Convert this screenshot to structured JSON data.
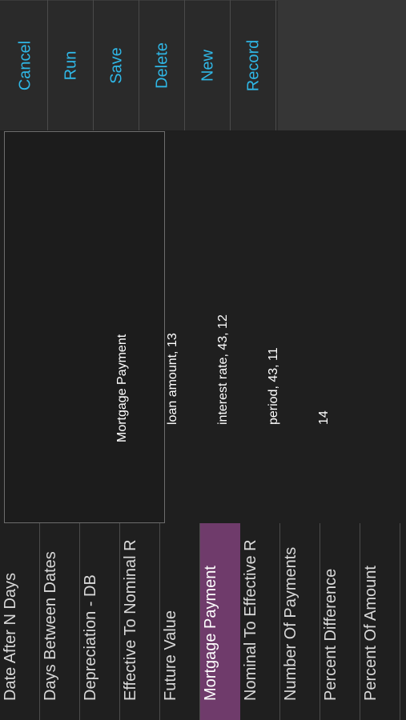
{
  "toolbar": {
    "buttons": [
      {
        "label": "Cancel"
      },
      {
        "label": "Run"
      },
      {
        "label": "Save"
      },
      {
        "label": "Delete"
      },
      {
        "label": "New"
      },
      {
        "label": "Record"
      }
    ],
    "accent_color": "#2fb7e6"
  },
  "popup": {
    "title": "Mortgage Payment",
    "lines": [
      "loan amount, 13",
      "interest rate, 43, 12",
      "period, 43, 11",
      "14"
    ]
  },
  "list": {
    "items": [
      {
        "label": "Date After N Days"
      },
      {
        "label": "Days Between Dates"
      },
      {
        "label": "Depreciation - DB"
      },
      {
        "label": "Effective To Nominal R"
      },
      {
        "label": "Future Value"
      },
      {
        "label": "Mortgage Payment",
        "selected": true
      },
      {
        "label": "Nominal To Effective R"
      },
      {
        "label": "Number Of Payments"
      },
      {
        "label": "Percent Difference"
      },
      {
        "label": "Percent Of Amount"
      }
    ],
    "selected_color": "#6f3b6b"
  }
}
